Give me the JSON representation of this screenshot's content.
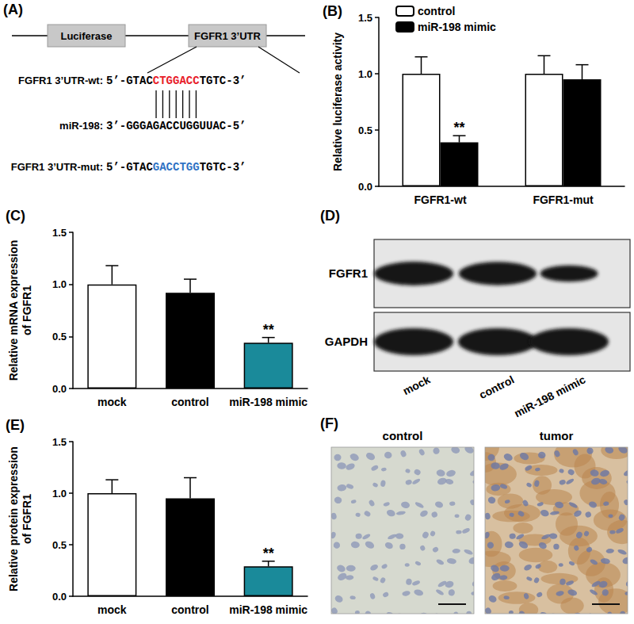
{
  "diagram": {
    "panel": "(A)",
    "boxes": [
      "Luciferase",
      "FGFR1 3’UTR"
    ],
    "sequences": [
      {
        "label": "FGFR1 3’UTR-wt:",
        "segments": [
          {
            "text": "5’-GTAC"
          },
          {
            "text": "CTGGACC",
            "color": "#e8202a"
          },
          {
            "text": "TGTC-3’"
          }
        ]
      },
      {
        "label": "miR-198:",
        "segments": [
          {
            "text": "3’-GGGAGACCUGGUUAC-5’"
          }
        ]
      },
      {
        "label": "FGFR1 3’UTR-mut:",
        "segments": [
          {
            "text": "5’-GTAC"
          },
          {
            "text": "GACCTGG",
            "color": "#2f72c4"
          },
          {
            "text": "TGTC-3’"
          }
        ]
      }
    ]
  },
  "chart_data": [
    {
      "type": "bar",
      "title": "(B)",
      "categories": [
        "FGFR1-wt",
        "FGFR1-mut"
      ],
      "series": [
        {
          "name": "control",
          "color": "#ffffff",
          "values": [
            1.0,
            1.0
          ],
          "errors": [
            0.15,
            0.16
          ],
          "significance": [
            null,
            null
          ]
        },
        {
          "name": "miR-198 mimic",
          "color": "#000000",
          "values": [
            0.39,
            0.95
          ],
          "errors": [
            0.06,
            0.13
          ],
          "significance": [
            "**",
            null
          ]
        }
      ],
      "y_label": "Relative luciferase activity",
      "ylim": [
        0,
        1.5
      ],
      "yticks": [
        {
          "value": 0,
          "label": "0.0"
        },
        0.5,
        {
          "value": 1,
          "label": "1.0"
        },
        1.5
      ],
      "grid": false,
      "legend": "top-left"
    },
    {
      "type": "bar",
      "title": "(C)",
      "categories": [
        "mock",
        "control",
        "miR-198 mimic"
      ],
      "values": [
        1.0,
        0.92,
        0.44
      ],
      "errors": [
        0.18,
        0.13,
        0.05
      ],
      "significance": [
        null,
        null,
        "**"
      ],
      "colors": [
        "#ffffff",
        "#000000",
        "#1a8a9a"
      ],
      "y_label": "Relative mRNA expression\nof FGFR1",
      "ylim": [
        0,
        1.5
      ],
      "yticks": [
        {
          "value": 0,
          "label": "0.0"
        },
        0.5,
        {
          "value": 1,
          "label": "1.0"
        },
        1.5
      ],
      "grid": false
    },
    {
      "type": "bar",
      "title": "(E)",
      "categories": [
        "mock",
        "control",
        "miR-198 mimic"
      ],
      "values": [
        1.0,
        0.95,
        0.29
      ],
      "errors": [
        0.13,
        0.2,
        0.05
      ],
      "significance": [
        null,
        null,
        "**"
      ],
      "colors": [
        "#ffffff",
        "#000000",
        "#1a8a9a"
      ],
      "y_label": "Relative protein expression\nof FGFR1",
      "ylim": [
        0,
        1.5
      ],
      "yticks": [
        {
          "value": 0,
          "label": "0.0"
        },
        0.5,
        {
          "value": 1,
          "label": "1.0"
        },
        1.5
      ],
      "grid": false
    }
  ],
  "blot": {
    "panel": "(D)",
    "rows": [
      "FGFR1",
      "GAPDH"
    ],
    "lanes": [
      "mock",
      "control",
      "miR-198 mimic"
    ]
  },
  "ihc": {
    "panel": "(F)",
    "images": [
      "control",
      "tumor"
    ]
  }
}
